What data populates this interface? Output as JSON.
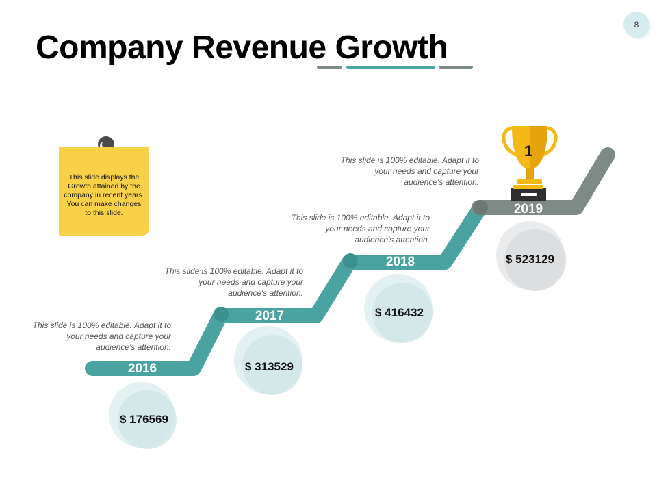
{
  "page_number": "8",
  "title": "Company Revenue Growth",
  "note": "This slide displays the Growth attained by the company in recent years. You can make changes to this slide.",
  "colors": {
    "teal": "#4aa3a0",
    "gray": "#7d8a85",
    "note": "#f9d149",
    "circle_teal": "#d6e9ea",
    "circle_gray": "#dfe2e3"
  },
  "steps": [
    {
      "year": "2016",
      "amount": "$ 176569",
      "description": "This slide is 100% editable. Adapt it to your needs and capture your audience's attention."
    },
    {
      "year": "2017",
      "amount": "$ 313529",
      "description": "This slide is 100% editable. Adapt it to your needs and capture your audience's attention."
    },
    {
      "year": "2018",
      "amount": "$ 416432",
      "description": "This slide is 100% editable. Adapt it to your needs and capture your audience's attention."
    },
    {
      "year": "2019",
      "amount": "$ 523129",
      "description": "This slide is 100% editable. Adapt it to your needs and capture your audience's attention."
    }
  ],
  "trophy_label": "1",
  "icons": [
    "pushpin-icon",
    "trophy-icon"
  ]
}
